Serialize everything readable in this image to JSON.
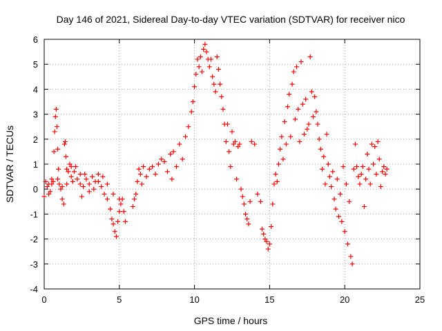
{
  "chart_data": {
    "type": "scatter",
    "title": "Day 146 of 2021, Sidereal Day-to-day VTEC variation (SDTVAR) for receiver nico",
    "xlabel": "GPS time / hours",
    "ylabel": "SDTVAR / TECUs",
    "xlim": [
      0,
      25
    ],
    "ylim": [
      -4,
      6
    ],
    "xticks": [
      0,
      5,
      10,
      15,
      20,
      25
    ],
    "yticks": [
      -4,
      -3,
      -2,
      -1,
      0,
      1,
      2,
      3,
      4,
      5,
      6
    ],
    "xtick_labels": [
      "0",
      "5",
      "10",
      "15",
      "20",
      "25"
    ],
    "ytick_labels": [
      "-4",
      "-3",
      "-2",
      "-1",
      "0",
      "1",
      "2",
      "3",
      "4",
      "5",
      "6"
    ],
    "grid": true,
    "marker": "+",
    "color": "#ff0000",
    "series": [
      {
        "name": "SDTVAR",
        "points": [
          [
            0.0,
            -0.3
          ],
          [
            0.1,
            0.3
          ],
          [
            0.2,
            0.1
          ],
          [
            0.3,
            0.2
          ],
          [
            0.4,
            -0.1
          ],
          [
            0.5,
            0.2
          ],
          [
            0.6,
            0.3
          ],
          [
            0.65,
            1.5
          ],
          [
            0.7,
            2.3
          ],
          [
            0.75,
            2.9
          ],
          [
            0.8,
            3.2
          ],
          [
            0.85,
            2.5
          ],
          [
            0.9,
            1.6
          ],
          [
            0.95,
            0.8
          ],
          [
            1.0,
            0.2
          ],
          [
            1.1,
            0.0
          ],
          [
            1.2,
            -0.4
          ],
          [
            1.3,
            -0.6
          ],
          [
            1.35,
            1.8
          ],
          [
            1.4,
            1.9
          ],
          [
            1.45,
            1.3
          ],
          [
            1.5,
            0.8
          ],
          [
            1.6,
            0.7
          ],
          [
            1.7,
            1.0
          ],
          [
            1.8,
            0.5
          ],
          [
            1.9,
            0.3
          ],
          [
            2.0,
            0.7
          ],
          [
            2.2,
            0.4
          ],
          [
            2.4,
            0.2
          ],
          [
            2.5,
            -0.3
          ],
          [
            2.6,
            0.1
          ],
          [
            2.8,
            0.4
          ],
          [
            3.0,
            0.2
          ],
          [
            3.2,
            0.5
          ],
          [
            3.4,
            0.3
          ],
          [
            3.6,
            0.6
          ],
          [
            3.8,
            0.1
          ],
          [
            4.0,
            -0.2
          ],
          [
            4.2,
            -0.4
          ],
          [
            4.4,
            -0.8
          ],
          [
            4.5,
            -1.2
          ],
          [
            4.6,
            -1.4
          ],
          [
            4.7,
            -1.7
          ],
          [
            4.8,
            -1.9
          ],
          [
            4.9,
            -1.3
          ],
          [
            5.0,
            -0.9
          ],
          [
            5.1,
            -0.6
          ],
          [
            5.2,
            -0.4
          ],
          [
            5.3,
            -0.9
          ],
          [
            5.4,
            -1.3
          ],
          [
            5.0,
            -0.4
          ],
          [
            4.6,
            -0.2
          ],
          [
            4.2,
            0.2
          ],
          [
            3.9,
            0.5
          ],
          [
            3.6,
            0.3
          ],
          [
            3.3,
            0.0
          ],
          [
            3.0,
            -0.1
          ],
          [
            2.7,
            0.6
          ],
          [
            2.4,
            0.6
          ],
          [
            2.1,
            0.9
          ],
          [
            1.8,
            0.9
          ],
          [
            1.5,
            0.2
          ],
          [
            1.2,
            0.1
          ],
          [
            0.9,
            0.4
          ],
          [
            0.5,
            0.4
          ],
          [
            0.3,
            -0.2
          ],
          [
            5.9,
            -0.7
          ],
          [
            6.0,
            -0.4
          ],
          [
            6.1,
            -0.2
          ],
          [
            6.2,
            0.3
          ],
          [
            6.3,
            0.8
          ],
          [
            6.4,
            0.6
          ],
          [
            6.5,
            0.2
          ],
          [
            6.6,
            0.9
          ],
          [
            6.8,
            0.5
          ],
          [
            7.0,
            0.8
          ],
          [
            7.2,
            0.9
          ],
          [
            7.4,
            0.6
          ],
          [
            7.6,
            1.0
          ],
          [
            7.8,
            1.2
          ],
          [
            8.0,
            1.1
          ],
          [
            8.2,
            0.7
          ],
          [
            8.4,
            1.4
          ],
          [
            8.5,
            0.4
          ],
          [
            8.6,
            1.5
          ],
          [
            8.8,
            0.9
          ],
          [
            9.0,
            1.8
          ],
          [
            9.2,
            1.2
          ],
          [
            9.4,
            2.1
          ],
          [
            9.6,
            2.5
          ],
          [
            9.8,
            3.1
          ],
          [
            9.9,
            3.5
          ],
          [
            10.0,
            4.1
          ],
          [
            10.1,
            4.6
          ],
          [
            10.2,
            5.2
          ],
          [
            10.3,
            4.9
          ],
          [
            10.4,
            5.3
          ],
          [
            10.5,
            4.7
          ],
          [
            10.6,
            5.6
          ],
          [
            10.7,
            5.8
          ],
          [
            10.8,
            5.5
          ],
          [
            10.9,
            5.2
          ],
          [
            11.0,
            4.9
          ],
          [
            11.1,
            5.2
          ],
          [
            11.2,
            4.5
          ],
          [
            11.3,
            4.2
          ],
          [
            11.4,
            3.9
          ],
          [
            11.5,
            5.3
          ],
          [
            11.6,
            4.8
          ],
          [
            11.7,
            4.2
          ],
          [
            11.8,
            3.7
          ],
          [
            11.9,
            3.2
          ],
          [
            12.0,
            2.6
          ],
          [
            12.1,
            1.9
          ],
          [
            12.2,
            2.6
          ],
          [
            12.3,
            1.5
          ],
          [
            12.4,
            0.9
          ],
          [
            12.5,
            2.3
          ],
          [
            12.6,
            1.8
          ],
          [
            12.7,
            1.9
          ],
          [
            12.8,
            0.4
          ],
          [
            12.9,
            1.7
          ],
          [
            13.0,
            1.8
          ],
          [
            13.1,
            0.0
          ],
          [
            13.2,
            -0.3
          ],
          [
            13.3,
            -0.6
          ],
          [
            13.4,
            -1.0
          ],
          [
            13.5,
            -1.2
          ],
          [
            13.6,
            -1.4
          ],
          [
            13.7,
            -0.5
          ],
          [
            13.8,
            1.9
          ],
          [
            14.0,
            1.8
          ],
          [
            14.2,
            -0.2
          ],
          [
            14.4,
            -0.5
          ],
          [
            14.5,
            -1.6
          ],
          [
            14.6,
            -1.8
          ],
          [
            14.7,
            -2.0
          ],
          [
            14.8,
            -2.1
          ],
          [
            14.9,
            -2.4
          ],
          [
            15.0,
            -2.2
          ],
          [
            15.1,
            -1.5
          ],
          [
            15.2,
            -0.6
          ],
          [
            15.3,
            0.2
          ],
          [
            15.4,
            0.6
          ],
          [
            15.5,
            0.3
          ],
          [
            15.6,
            1.0
          ],
          [
            15.7,
            1.6
          ],
          [
            15.8,
            2.1
          ],
          [
            15.9,
            1.2
          ],
          [
            16.0,
            2.7
          ],
          [
            16.1,
            1.8
          ],
          [
            16.2,
            3.3
          ],
          [
            16.3,
            3.8
          ],
          [
            16.4,
            2.1
          ],
          [
            16.5,
            4.2
          ],
          [
            16.6,
            4.7
          ],
          [
            16.7,
            2.8
          ],
          [
            16.8,
            4.9
          ],
          [
            16.9,
            3.2
          ],
          [
            17.0,
            1.9
          ],
          [
            17.1,
            5.1
          ],
          [
            17.2,
            3.4
          ],
          [
            17.3,
            2.2
          ],
          [
            17.4,
            3.6
          ],
          [
            17.5,
            2.4
          ],
          [
            17.6,
            2.6
          ],
          [
            17.7,
            5.3
          ],
          [
            17.8,
            3.9
          ],
          [
            17.9,
            2.9
          ],
          [
            18.0,
            3.7
          ],
          [
            18.1,
            3.1
          ],
          [
            18.2,
            2.6
          ],
          [
            18.3,
            2.0
          ],
          [
            18.4,
            1.6
          ],
          [
            18.5,
            0.8
          ],
          [
            18.6,
            1.3
          ],
          [
            18.7,
            0.2
          ],
          [
            18.8,
            2.2
          ],
          [
            18.9,
            1.0
          ],
          [
            19.0,
            0.5
          ],
          [
            19.1,
            0.1
          ],
          [
            19.2,
            0.7
          ],
          [
            19.3,
            -0.4
          ],
          [
            19.4,
            -0.8
          ],
          [
            19.5,
            0.4
          ],
          [
            19.6,
            -1.1
          ],
          [
            19.7,
            -0.2
          ],
          [
            19.8,
            -1.3
          ],
          [
            19.9,
            0.9
          ],
          [
            20.0,
            -1.7
          ],
          [
            20.1,
            0.2
          ],
          [
            20.2,
            -2.2
          ],
          [
            20.3,
            -0.5
          ],
          [
            20.4,
            -2.7
          ],
          [
            20.5,
            -3.0
          ],
          [
            20.6,
            0.8
          ],
          [
            20.7,
            1.8
          ],
          [
            20.8,
            0.9
          ],
          [
            20.9,
            0.5
          ],
          [
            21.0,
            0.2
          ],
          [
            21.1,
            0.6
          ],
          [
            21.2,
            0.9
          ],
          [
            21.3,
            -0.7
          ],
          [
            21.4,
            0.4
          ],
          [
            21.5,
            1.4
          ],
          [
            21.6,
            0.8
          ],
          [
            21.7,
            0.2
          ],
          [
            21.8,
            1.8
          ],
          [
            21.9,
            1.0
          ],
          [
            22.0,
            1.7
          ],
          [
            22.1,
            0.6
          ],
          [
            22.2,
            1.9
          ],
          [
            22.3,
            1.2
          ],
          [
            22.4,
            0.1
          ],
          [
            22.5,
            0.7
          ],
          [
            22.6,
            0.9
          ],
          [
            22.7,
            0.6
          ],
          [
            22.8,
            0.8
          ]
        ]
      }
    ]
  }
}
